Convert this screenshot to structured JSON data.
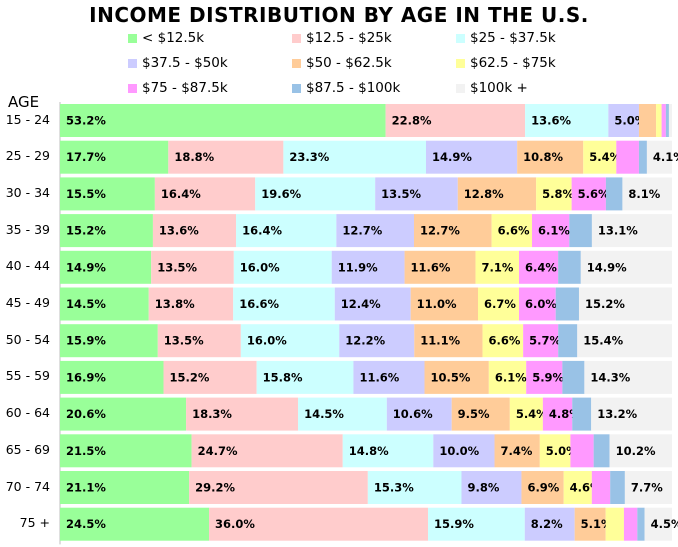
{
  "chart_data": {
    "type": "bar",
    "orientation": "horizontal",
    "stacked": "100%",
    "title": "INCOME DISTRIBUTION BY AGE IN THE U.S.",
    "ylabel": "AGE",
    "legend_position": "top",
    "categories": [
      "15 - 24",
      "25 - 29",
      "30 - 34",
      "35 - 39",
      "40 - 44",
      "45 - 49",
      "50 - 54",
      "55 - 59",
      "60 - 64",
      "65 - 69",
      "70 - 74",
      "75 +"
    ],
    "series": [
      {
        "name": "< $12.5k",
        "color": "#99ff99",
        "values": [
          53.2,
          17.7,
          15.5,
          15.2,
          14.9,
          14.5,
          15.9,
          16.9,
          20.6,
          21.5,
          21.1,
          24.5
        ],
        "labels": [
          "53.2%",
          "17.7%",
          "15.5%",
          "15.2%",
          "14.9%",
          "14.5%",
          "15.9%",
          "16.9%",
          "20.6%",
          "21.5%",
          "21.1%",
          "24.5%"
        ]
      },
      {
        "name": "$12.5 - $25k",
        "color": "#ffcccc",
        "values": [
          22.8,
          18.8,
          16.4,
          13.6,
          13.5,
          13.8,
          13.5,
          15.2,
          18.3,
          24.7,
          29.2,
          36.0
        ],
        "labels": [
          "22.8%",
          "18.8%",
          "16.4%",
          "13.6%",
          "13.5%",
          "13.8%",
          "13.5%",
          "15.2%",
          "18.3%",
          "24.7%",
          "29.2%",
          "36.0%"
        ]
      },
      {
        "name": "$25 - $37.5k",
        "color": "#ccffff",
        "values": [
          13.6,
          23.3,
          19.6,
          16.4,
          16.0,
          16.6,
          16.0,
          15.8,
          14.5,
          14.8,
          15.3,
          15.9
        ],
        "labels": [
          "13.6%",
          "23.3%",
          "19.6%",
          "16.4%",
          "16.0%",
          "16.6%",
          "16.0%",
          "15.8%",
          "14.5%",
          "14.8%",
          "15.3%",
          "15.9%"
        ]
      },
      {
        "name": "$37.5 - $50k",
        "color": "#ccccff",
        "values": [
          5.0,
          14.9,
          13.5,
          12.7,
          11.9,
          12.4,
          12.2,
          11.6,
          10.6,
          10.0,
          9.8,
          8.2
        ],
        "labels": [
          "5.0%",
          "14.9%",
          "13.5%",
          "12.7%",
          "11.9%",
          "12.4%",
          "12.2%",
          "11.6%",
          "10.6%",
          "10.0%",
          "9.8%",
          "8.2%"
        ]
      },
      {
        "name": "$50 - $62.5k",
        "color": "#ffcc99",
        "values": [
          2.8,
          10.8,
          12.8,
          12.7,
          11.6,
          11.0,
          11.1,
          10.5,
          9.5,
          7.4,
          6.9,
          5.1
        ],
        "labels": [
          "",
          "10.8%",
          "12.8%",
          "12.7%",
          "11.6%",
          "11.0%",
          "11.1%",
          "10.5%",
          "9.5%",
          "7.4%",
          "6.9%",
          "5.1%"
        ]
      },
      {
        "name": "$62.5 - $75k",
        "color": "#ffff99",
        "values": [
          0.9,
          5.4,
          5.8,
          6.6,
          7.1,
          6.7,
          6.6,
          6.1,
          5.4,
          5.0,
          4.6,
          3.0
        ],
        "labels": [
          "",
          "5.4%",
          "5.8%",
          "6.6%",
          "7.1%",
          "6.7%",
          "6.6%",
          "6.1%",
          "5.4%",
          "5.0%",
          "4.6%",
          ""
        ]
      },
      {
        "name": "$75 - $87.5k",
        "color": "#ff99ff",
        "values": [
          0.7,
          3.7,
          5.6,
          6.1,
          6.4,
          6.0,
          5.7,
          5.9,
          4.8,
          3.8,
          3.0,
          2.2
        ],
        "labels": [
          "",
          "",
          "5.6%",
          "6.1%",
          "6.4%",
          "6.0%",
          "5.7%",
          "5.9%",
          "4.8%",
          "",
          "",
          ""
        ]
      },
      {
        "name": "$87.5 - $100k",
        "color": "#99c2e6",
        "values": [
          0.5,
          1.3,
          2.7,
          3.7,
          3.7,
          3.8,
          3.1,
          3.6,
          3.1,
          2.6,
          2.4,
          1.2
        ],
        "labels": [
          "",
          "",
          "",
          "",
          "",
          "",
          "",
          "",
          "",
          "",
          "",
          ""
        ]
      },
      {
        "name": "$100k +",
        "color": "#f2f2f2",
        "values": [
          0.5,
          4.1,
          8.1,
          13.1,
          14.9,
          15.2,
          15.4,
          14.3,
          13.2,
          10.2,
          7.7,
          4.5
        ],
        "labels": [
          "",
          "4.1%",
          "8.1%",
          "13.1%",
          "14.9%",
          "15.2%",
          "15.4%",
          "14.3%",
          "13.2%",
          "10.2%",
          "7.7%",
          "4.5%"
        ]
      }
    ]
  }
}
